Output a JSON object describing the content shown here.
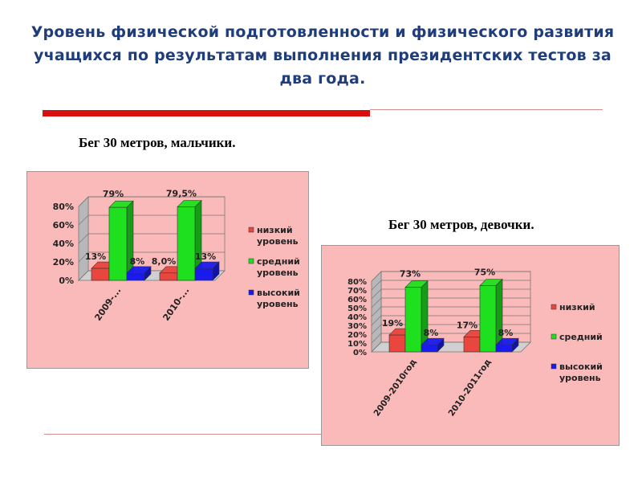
{
  "header": {
    "title_line1": "Уровень физической подготовленности и физического развития",
    "title_line2": "учащихся по результатам выполнения президентских тестов за",
    "title_line3": "два года."
  },
  "chart_data": [
    {
      "type": "bar",
      "title": "Бег 30 метров, мальчики.",
      "categories": [
        "2009-...",
        "2010-..."
      ],
      "ylim": [
        0,
        80
      ],
      "yticks": [
        "0%",
        "20%",
        "40%",
        "60%",
        "80%"
      ],
      "legend_position": "right",
      "series": [
        {
          "name": "низкий уровень",
          "values": [
            13,
            8
          ],
          "labels": [
            "13%",
            "8,0%"
          ],
          "color": "#e8463e"
        },
        {
          "name": "средний уровень",
          "values": [
            79,
            79.5
          ],
          "labels": [
            "79%",
            "79,5%"
          ],
          "color": "#1ee01e"
        },
        {
          "name": "высокий уровень",
          "values": [
            8,
            13
          ],
          "labels": [
            "8%",
            "13%"
          ],
          "color": "#1a1aee"
        }
      ]
    },
    {
      "type": "bar",
      "title": "Бег 30 метров, девочки.",
      "categories": [
        "2009-2010год",
        "2010-2011год"
      ],
      "ylim": [
        0,
        80
      ],
      "yticks": [
        "0%",
        "10%",
        "20%",
        "30%",
        "40%",
        "50%",
        "60%",
        "70%",
        "80%"
      ],
      "legend_position": "right",
      "series": [
        {
          "name": "низкий",
          "values": [
            19,
            17
          ],
          "labels": [
            "19%",
            "17%"
          ],
          "color": "#e8463e"
        },
        {
          "name": "средний",
          "values": [
            73,
            75
          ],
          "labels": [
            "73%",
            "75%"
          ],
          "color": "#1ee01e"
        },
        {
          "name": "высокий уровень",
          "values": [
            8,
            8
          ],
          "labels": [
            "8%",
            "8%"
          ],
          "color": "#1a1aee"
        }
      ]
    }
  ]
}
